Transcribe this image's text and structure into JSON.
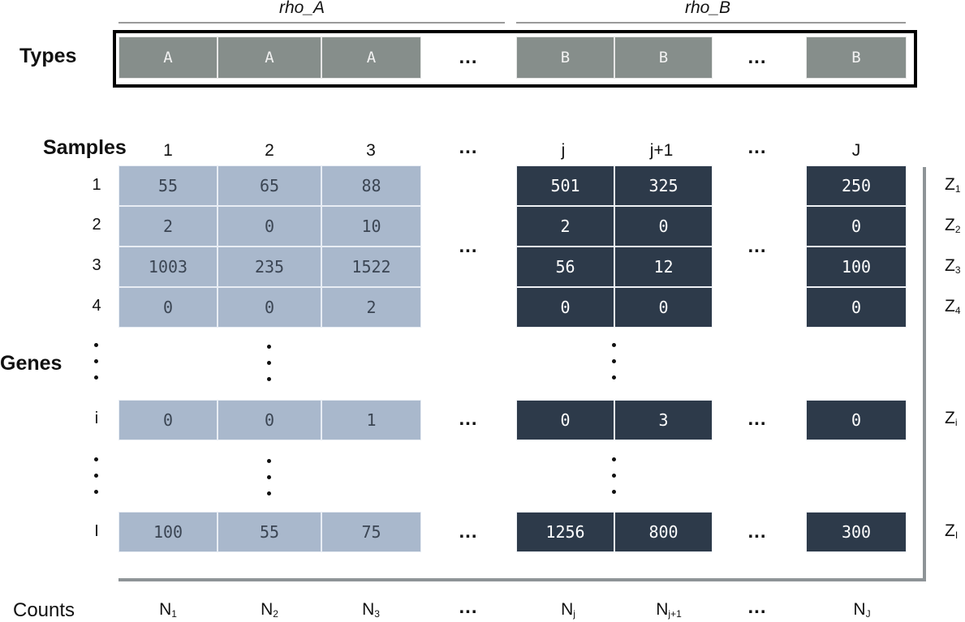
{
  "groups": {
    "a_label": "rho_A",
    "b_label": "rho_B"
  },
  "labels": {
    "types": "Types",
    "samples": "Samples",
    "genes": "Genes",
    "counts": "Counts",
    "ellipsis": "..."
  },
  "types": {
    "a": [
      "A",
      "A",
      "A"
    ],
    "b": [
      "B",
      "B",
      "B"
    ]
  },
  "columns": {
    "a": [
      "1",
      "2",
      "3"
    ],
    "b_pair": [
      "j",
      "j+1"
    ],
    "b_last": "J"
  },
  "rows": [
    "1",
    "2",
    "3",
    "4",
    "i",
    "I"
  ],
  "matrix_a": [
    [
      "55",
      "65",
      "88"
    ],
    [
      "2",
      "0",
      "10"
    ],
    [
      "1003",
      "235",
      "1522"
    ],
    [
      "0",
      "0",
      "2"
    ],
    [
      "0",
      "0",
      "1"
    ],
    [
      "100",
      "55",
      "75"
    ]
  ],
  "matrix_b": [
    [
      "501",
      "325",
      "250"
    ],
    [
      "2",
      "0",
      "0"
    ],
    [
      "56",
      "12",
      "100"
    ],
    [
      "0",
      "0",
      "0"
    ],
    [
      "0",
      "3",
      "0"
    ],
    [
      "1256",
      "800",
      "300"
    ]
  ],
  "z_labels": [
    {
      "base": "Z",
      "sub": "1"
    },
    {
      "base": "Z",
      "sub": "2"
    },
    {
      "base": "Z",
      "sub": "3"
    },
    {
      "base": "Z",
      "sub": "4"
    },
    {
      "base": "Z",
      "sub": "i"
    },
    {
      "base": "Z",
      "sub": "I"
    }
  ],
  "n_labels": [
    {
      "base": "N",
      "sub": "1"
    },
    {
      "base": "N",
      "sub": "2"
    },
    {
      "base": "N",
      "sub": "3"
    },
    {
      "base": "N",
      "sub": "j"
    },
    {
      "base": "N",
      "sub": "j+1"
    },
    {
      "base": "N",
      "sub": "J"
    }
  ]
}
